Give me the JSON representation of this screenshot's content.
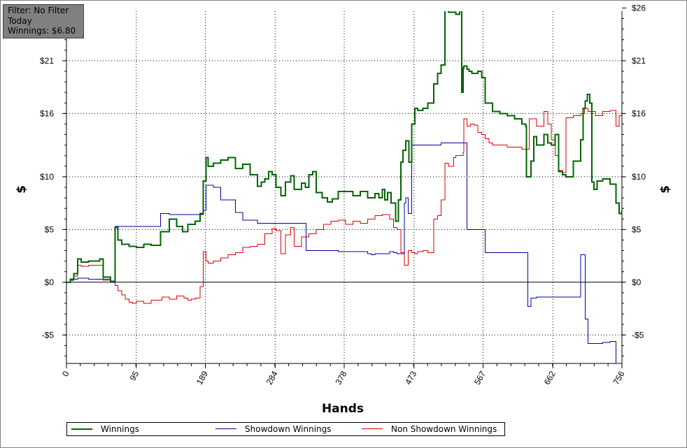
{
  "filter_box": {
    "filter": "Filter: No Filter",
    "period": "Today",
    "winnings": "Winnings: $6.80"
  },
  "chart_data": {
    "type": "line",
    "xlabel": "Hands",
    "ylabel": "$",
    "xlim": [
      0,
      756
    ],
    "ylim": [
      -7.7,
      25.7
    ],
    "grid": true,
    "legend_position": "bottom",
    "x_ticks": [
      "0",
      "95",
      "189",
      "284",
      "378",
      "473",
      "567",
      "662",
      "756"
    ],
    "x_tick_values": [
      0,
      95,
      189,
      284,
      378,
      473,
      567,
      662,
      756
    ],
    "y_tick_values": [
      -5,
      0,
      5,
      10,
      16,
      21,
      26
    ],
    "y_tick_labels": [
      "-$5",
      "$0",
      "$5",
      "$10",
      "$16",
      "$21",
      "$26"
    ],
    "series": [
      {
        "name": "Winnings",
        "color": "#006400",
        "x": [
          0,
          5,
          10,
          15,
          20,
          30,
          45,
          50,
          60,
          66,
          70,
          75,
          85,
          95,
          105,
          115,
          128,
          140,
          150,
          158,
          165,
          175,
          182,
          186,
          190,
          193,
          200,
          210,
          220,
          230,
          240,
          250,
          260,
          265,
          270,
          275,
          280,
          285,
          292,
          298,
          305,
          310,
          320,
          325,
          330,
          335,
          340,
          348,
          355,
          362,
          370,
          380,
          390,
          400,
          410,
          420,
          425,
          430,
          433,
          437,
          442,
          448,
          452,
          455,
          458,
          462,
          466,
          470,
          474,
          478,
          485,
          492,
          500,
          505,
          510,
          515,
          520,
          527,
          530,
          535,
          538,
          540,
          541,
          545,
          548,
          552,
          560,
          565,
          570,
          580,
          590,
          600,
          610,
          620,
          625,
          626,
          632,
          636,
          640,
          650,
          655,
          660,
          665,
          670,
          675,
          680,
          690,
          700,
          703,
          706,
          709,
          712,
          715,
          718,
          722,
          730,
          740,
          748,
          752,
          756
        ],
        "values": [
          0,
          0.3,
          0.8,
          2.2,
          1.9,
          2.0,
          2.2,
          0.5,
          0.1,
          5.2,
          4.0,
          3.6,
          3.4,
          3.3,
          3.6,
          3.5,
          4.8,
          6.0,
          5.3,
          4.8,
          5.5,
          5.8,
          6.5,
          9.6,
          11.8,
          11.0,
          11.3,
          11.6,
          11.8,
          10.8,
          11.2,
          10.2,
          9.1,
          9.5,
          9.8,
          10.5,
          10.2,
          9.0,
          8.2,
          9.5,
          10.1,
          8.8,
          9.4,
          9.0,
          10.2,
          10.5,
          8.5,
          8.0,
          7.6,
          7.9,
          8.6,
          8.6,
          8.2,
          8.6,
          8.0,
          8.4,
          8.0,
          8.8,
          7.8,
          8.5,
          7.5,
          5.8,
          7.8,
          11.4,
          12.5,
          13.4,
          11.4,
          15.0,
          16.5,
          16.3,
          16.5,
          17.0,
          18.8,
          19.8,
          20.6,
          26.0,
          25.6,
          25.6,
          25.4,
          27.0,
          18.0,
          20.3,
          20.5,
          20.2,
          20.0,
          19.8,
          20.0,
          19.4,
          17.0,
          16.2,
          16.0,
          15.8,
          15.5,
          15.0,
          14.8,
          10.0,
          11.5,
          13.8,
          13.0,
          14.0,
          13.2,
          13.0,
          14.0,
          10.5,
          10.2,
          10.0,
          11.5,
          13.5,
          16.5,
          17.2,
          17.8,
          17.0,
          9.5,
          8.8,
          9.6,
          9.8,
          9.3,
          7.5,
          6.5,
          6.8
        ]
      },
      {
        "name": "Showdown Winnings",
        "color": "#0000AA",
        "x": [
          0,
          5,
          10,
          15,
          20,
          30,
          45,
          50,
          60,
          66,
          95,
          128,
          140,
          150,
          175,
          186,
          190,
          200,
          210,
          220,
          230,
          240,
          260,
          290,
          320,
          326,
          330,
          340,
          350,
          370,
          380,
          390,
          400,
          410,
          415,
          420,
          430,
          440,
          445,
          448,
          450,
          455,
          458,
          460,
          462,
          465,
          470,
          480,
          490,
          500,
          510,
          520,
          530,
          541,
          545,
          548,
          552,
          560,
          565,
          570,
          580,
          590,
          600,
          610,
          620,
          626,
          628,
          632,
          640,
          650,
          660,
          670,
          680,
          690,
          695,
          700,
          703,
          706,
          710,
          715,
          720,
          730,
          740,
          748
        ],
        "values": [
          0,
          0.2,
          0.3,
          0.4,
          0.4,
          0.3,
          0.3,
          0.3,
          0.0,
          5.3,
          5.3,
          6.5,
          6.4,
          6.4,
          6.4,
          6.8,
          9.2,
          9.0,
          7.8,
          7.8,
          6.6,
          5.9,
          5.6,
          5.6,
          5.6,
          3.0,
          3.0,
          3.0,
          3.0,
          2.9,
          2.9,
          2.9,
          2.9,
          2.7,
          2.6,
          2.7,
          2.7,
          2.9,
          2.8,
          2.8,
          2.7,
          2.7,
          2.7,
          7.5,
          8.0,
          6.5,
          13.0,
          13.0,
          13.0,
          13.0,
          13.2,
          13.2,
          13.2,
          13.2,
          5.0,
          5.0,
          5.0,
          5.0,
          5.0,
          2.8,
          2.8,
          2.8,
          2.8,
          2.8,
          2.8,
          2.8,
          -2.3,
          -1.5,
          -1.4,
          -1.4,
          -1.4,
          -1.4,
          -1.4,
          -1.4,
          -1.4,
          2.6,
          2.6,
          -3.5,
          -5.8,
          -5.8,
          -5.8,
          -5.7,
          -5.6,
          -7.7
        ]
      },
      {
        "name": "Non Showdown Winnings",
        "color": "#DD0000",
        "x": [
          0,
          5,
          10,
          15,
          20,
          30,
          45,
          50,
          60,
          66,
          70,
          75,
          80,
          85,
          90,
          95,
          105,
          115,
          130,
          140,
          150,
          160,
          165,
          170,
          175,
          182,
          186,
          190,
          193,
          200,
          210,
          220,
          230,
          240,
          250,
          260,
          270,
          280,
          285,
          292,
          298,
          305,
          310,
          320,
          330,
          340,
          350,
          360,
          370,
          380,
          390,
          400,
          410,
          420,
          430,
          440,
          445,
          450,
          455,
          460,
          465,
          470,
          474,
          478,
          485,
          492,
          500,
          505,
          510,
          515,
          520,
          527,
          530,
          535,
          540,
          541,
          545,
          550,
          555,
          560,
          565,
          570,
          575,
          580,
          590,
          600,
          610,
          620,
          630,
          640,
          650,
          655,
          660,
          665,
          670,
          675,
          680,
          690,
          700,
          705,
          710,
          720,
          730,
          740,
          748,
          752,
          756
        ],
        "values": [
          0,
          0.3,
          0.6,
          1.6,
          1.5,
          1.6,
          1.6,
          0.2,
          0.0,
          -0.3,
          -0.8,
          -1.2,
          -1.6,
          -1.9,
          -2.0,
          -1.8,
          -2.0,
          -1.7,
          -1.4,
          -1.6,
          -1.3,
          -1.5,
          -1.7,
          -1.6,
          -1.5,
          -0.4,
          2.9,
          2.0,
          1.8,
          2.0,
          2.3,
          2.6,
          2.8,
          3.3,
          3.4,
          3.6,
          4.6,
          5.1,
          4.9,
          2.7,
          4.5,
          5.2,
          3.4,
          4.3,
          4.6,
          5.0,
          5.5,
          5.8,
          5.9,
          5.5,
          5.8,
          5.6,
          6.0,
          6.3,
          6.4,
          6.0,
          5.2,
          5.0,
          2.8,
          1.6,
          3.0,
          2.8,
          2.7,
          2.9,
          3.0,
          2.8,
          6.0,
          6.3,
          7.8,
          11.3,
          11.0,
          11.8,
          12.0,
          12.0,
          12.3,
          15.5,
          14.8,
          15.0,
          14.9,
          14.2,
          14.0,
          13.6,
          13.2,
          13.0,
          13.0,
          12.8,
          12.8,
          12.6,
          15.5,
          14.8,
          16.2,
          15.0,
          13.5,
          12.0,
          10.6,
          10.4,
          15.6,
          15.8,
          16.0,
          16.5,
          16.2,
          15.8,
          16.2,
          16.3,
          14.8,
          15.8,
          15.2
        ]
      }
    ]
  }
}
